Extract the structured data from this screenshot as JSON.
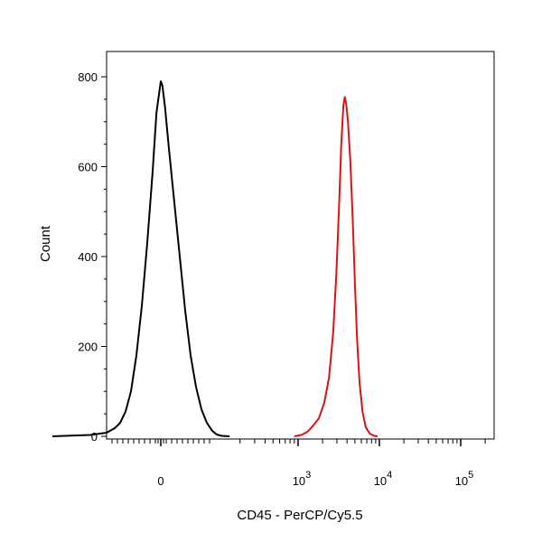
{
  "chart_data": {
    "type": "line",
    "title": "",
    "xlabel": "CD45 - PerCP/Cy5.5",
    "ylabel": "Count",
    "x_scale": "biexponential",
    "x_ticks": [
      {
        "value": 0,
        "base": "0",
        "exp": ""
      },
      {
        "value": 1000,
        "base": "10",
        "exp": "3"
      },
      {
        "value": 10000,
        "base": "10",
        "exp": "4"
      },
      {
        "value": 100000,
        "base": "10",
        "exp": "5"
      }
    ],
    "y_ticks": [
      0,
      200,
      400,
      600,
      800
    ],
    "ylim": [
      0,
      800
    ],
    "grid": false,
    "legend": "none",
    "series": [
      {
        "color": "#000000",
        "points": [
          [
            -200,
            0
          ],
          [
            -130,
            3
          ],
          [
            -100,
            8
          ],
          [
            -85,
            18
          ],
          [
            -75,
            30
          ],
          [
            -65,
            55
          ],
          [
            -55,
            100
          ],
          [
            -45,
            180
          ],
          [
            -35,
            290
          ],
          [
            -25,
            430
          ],
          [
            -15,
            590
          ],
          [
            -8,
            720
          ],
          [
            0,
            790
          ],
          [
            3,
            780
          ],
          [
            8,
            730
          ],
          [
            15,
            640
          ],
          [
            25,
            520
          ],
          [
            35,
            400
          ],
          [
            45,
            280
          ],
          [
            55,
            180
          ],
          [
            65,
            110
          ],
          [
            75,
            60
          ],
          [
            85,
            30
          ],
          [
            95,
            12
          ],
          [
            105,
            4
          ],
          [
            120,
            1
          ],
          [
            150,
            0
          ]
        ]
      },
      {
        "color": "#e11010",
        "points": [
          [
            900,
            0
          ],
          [
            1100,
            3
          ],
          [
            1300,
            10
          ],
          [
            1500,
            22
          ],
          [
            1800,
            40
          ],
          [
            2100,
            75
          ],
          [
            2400,
            130
          ],
          [
            2700,
            230
          ],
          [
            2950,
            360
          ],
          [
            3200,
            520
          ],
          [
            3400,
            650
          ],
          [
            3600,
            735
          ],
          [
            3750,
            755
          ],
          [
            3900,
            740
          ],
          [
            4100,
            700
          ],
          [
            4400,
            610
          ],
          [
            4700,
            480
          ],
          [
            5000,
            340
          ],
          [
            5300,
            220
          ],
          [
            5700,
            120
          ],
          [
            6200,
            55
          ],
          [
            6800,
            20
          ],
          [
            7600,
            6
          ],
          [
            8600,
            1
          ],
          [
            9500,
            0
          ]
        ]
      }
    ]
  }
}
